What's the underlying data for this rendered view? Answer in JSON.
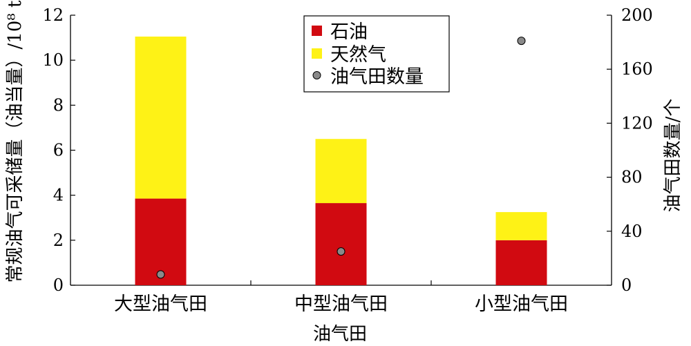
{
  "chart_data": {
    "type": "bar",
    "stacked": true,
    "categories": [
      "大型油气田",
      "中型油气田",
      "小型油气田"
    ],
    "series": [
      {
        "name": "石油",
        "values": [
          3.85,
          3.65,
          2.0
        ],
        "color": "#d10a11",
        "axis": "left"
      },
      {
        "name": "天然气",
        "values": [
          7.2,
          2.85,
          1.25
        ],
        "color": "#fef216",
        "axis": "left"
      }
    ],
    "points": {
      "name": "油气田数量",
      "values": [
        8,
        25,
        181
      ],
      "axis": "right",
      "color": "#8a8a8a"
    },
    "xlabel": "油气田",
    "ylabel_left": "常规油气可采储量（油当量）/10⁸ t",
    "ylabel_right": "油气田数量/个",
    "ylim_left": [
      0,
      12
    ],
    "ylim_right": [
      0,
      200
    ],
    "yticks_left": [
      0,
      2,
      4,
      6,
      8,
      10,
      12
    ],
    "yticks_right": [
      0,
      40,
      80,
      120,
      160,
      200
    ],
    "legend_position": "top-center"
  }
}
